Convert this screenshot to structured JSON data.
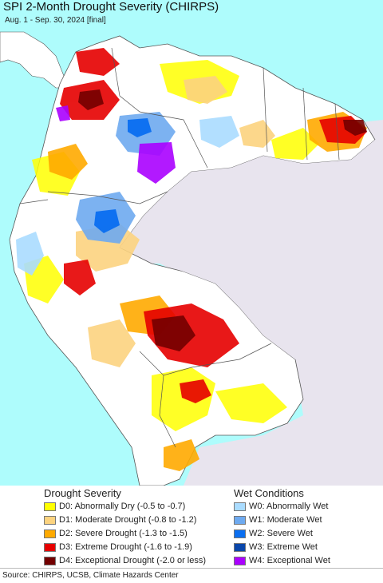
{
  "map": {
    "title": "SPI 2-Month Drought Severity (CHIRPS)",
    "subtitle": "Aug. 1 - Sep. 30, 2024 [final]"
  },
  "legend": {
    "drought": {
      "title": "Drought Severity",
      "items": [
        {
          "label": "D0: Abnormally Dry (-0.5 to -0.7)",
          "color": "#ffff00"
        },
        {
          "label": "D1: Moderate Drought (-0.8 to -1.2)",
          "color": "#fcd37f"
        },
        {
          "label": "D2: Severe Drought (-1.3 to -1.5)",
          "color": "#ffaa00"
        },
        {
          "label": "D3: Extreme Drought (-1.6 to -1.9)",
          "color": "#e60000"
        },
        {
          "label": "D4: Exceptional Drought (-2.0 or less)",
          "color": "#730000"
        }
      ]
    },
    "wet": {
      "title": "Wet Conditions",
      "items": [
        {
          "label": "W0: Abnormally Wet",
          "color": "#aadcff"
        },
        {
          "label": "W1: Moderate Wet",
          "color": "#6eaaf0"
        },
        {
          "label": "W2: Severe Wet",
          "color": "#0a6ef0"
        },
        {
          "label": "W3: Extreme Wet",
          "color": "#0a46aa"
        },
        {
          "label": "W4: Exceptional Wet",
          "color": "#aa00ff"
        }
      ]
    }
  },
  "source": "Source: CHIRPS, UCSB, Climate Hazards Center",
  "colors": {
    "ocean": "#aefcfc",
    "land": "#ffffff",
    "no_data_land": "#e8e4ee",
    "border": "#555555"
  }
}
